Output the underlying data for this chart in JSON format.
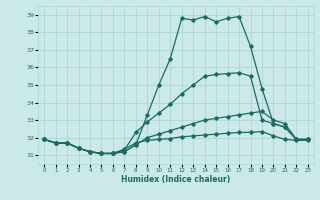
{
  "xlabel": "Humidex (Indice chaleur)",
  "xlim": [
    -0.5,
    23.5
  ],
  "ylim": [
    30.5,
    39.5
  ],
  "yticks": [
    31,
    32,
    33,
    34,
    35,
    36,
    37,
    38,
    39
  ],
  "xticks": [
    0,
    1,
    2,
    3,
    4,
    5,
    6,
    7,
    8,
    9,
    10,
    11,
    12,
    13,
    14,
    15,
    16,
    17,
    18,
    19,
    20,
    21,
    22,
    23
  ],
  "bg_color": "#cce9ea",
  "grid_color": "#aed4d5",
  "line_color": "#1a6b62",
  "line_width": 0.9,
  "marker": "D",
  "marker_size": 1.8,
  "series": [
    [
      31.9,
      31.7,
      31.7,
      31.4,
      31.2,
      31.1,
      31.1,
      31.2,
      31.6,
      32.0,
      32.2,
      32.4,
      32.6,
      32.8,
      33.0,
      33.1,
      33.2,
      33.3,
      33.4,
      33.5,
      33.0,
      32.8,
      31.9,
      31.9
    ],
    [
      31.9,
      31.7,
      31.7,
      31.4,
      31.2,
      31.1,
      31.1,
      31.2,
      31.6,
      33.3,
      35.0,
      36.5,
      38.8,
      38.7,
      38.9,
      38.6,
      38.8,
      38.9,
      37.2,
      34.8,
      32.8,
      32.6,
      31.9,
      31.9
    ],
    [
      31.9,
      31.7,
      31.7,
      31.4,
      31.2,
      31.1,
      31.1,
      31.3,
      32.3,
      32.9,
      33.4,
      33.9,
      34.5,
      35.0,
      35.5,
      35.6,
      35.65,
      35.7,
      35.5,
      33.0,
      32.8,
      32.6,
      31.9,
      31.9
    ],
    [
      31.9,
      31.7,
      31.7,
      31.4,
      31.2,
      31.1,
      31.1,
      31.35,
      31.7,
      31.85,
      31.9,
      31.95,
      32.05,
      32.1,
      32.15,
      32.2,
      32.25,
      32.3,
      32.3,
      32.35,
      32.1,
      31.9,
      31.85,
      31.85
    ]
  ]
}
